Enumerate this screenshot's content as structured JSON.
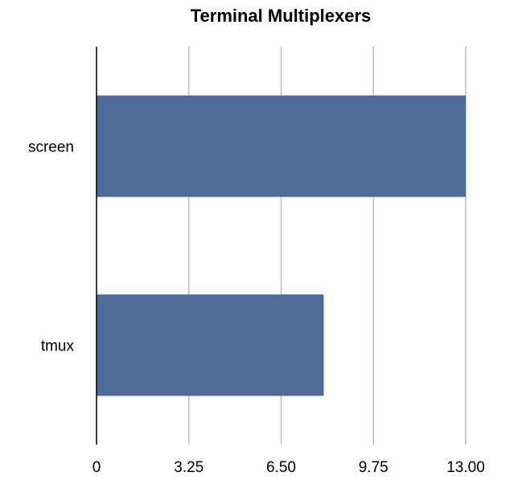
{
  "chart_data": {
    "type": "bar",
    "orientation": "horizontal",
    "title": "Terminal Multiplexers",
    "categories": [
      "screen",
      "tmux"
    ],
    "values": [
      13.0,
      8.0
    ],
    "xlabel": "",
    "ylabel": "",
    "xlim": [
      0,
      13.0
    ],
    "xticks": [
      "0",
      "3.25",
      "6.50",
      "9.75",
      "13.00"
    ],
    "xtick_values": [
      0,
      3.25,
      6.5,
      9.75,
      13.0
    ],
    "grid": true,
    "legend": "none",
    "bar_color": "#4f6b99",
    "grid_color": "#bbbbbb",
    "axis_color": "#000000"
  }
}
